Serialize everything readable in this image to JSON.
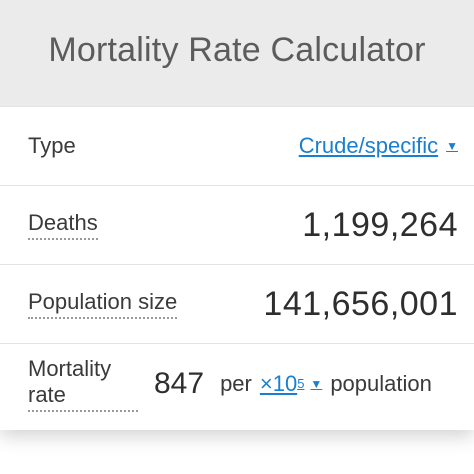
{
  "header": {
    "title": "Mortality Rate Calculator"
  },
  "rows": {
    "type": {
      "label": "Type",
      "selected": "Crude/specific"
    },
    "deaths": {
      "label": "Deaths",
      "value": "1,199,264"
    },
    "population": {
      "label": "Population size",
      "value": "141,656,001"
    },
    "rate": {
      "label_line1": "Mortality",
      "label_line2": "rate",
      "value": "847",
      "per": "per",
      "unit_base": "×10",
      "unit_exp": "5",
      "suffix": "population"
    }
  },
  "colors": {
    "accent": "#1a7fd0",
    "header_bg": "#ebebeb",
    "title": "#5c5c5c"
  },
  "icons": {
    "dropdown": "chevron-down-icon"
  }
}
